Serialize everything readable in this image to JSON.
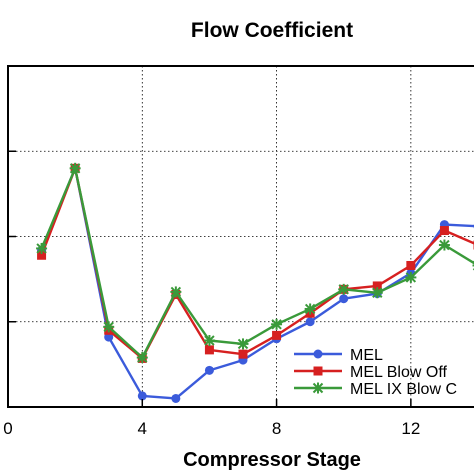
{
  "chart_data": {
    "type": "line",
    "title": "Flow Coefficient",
    "xlabel": "Compressor Stage",
    "ylabel": "",
    "xlim": [
      0,
      14
    ],
    "ylim": [
      0,
      4
    ],
    "x_ticks": [
      0,
      4,
      8,
      12
    ],
    "y_grid": [
      1,
      2,
      3
    ],
    "grid": true,
    "legend_position": "bottom-right",
    "x": [
      1,
      2,
      3,
      4,
      5,
      6,
      7,
      8,
      9,
      10,
      11,
      12,
      13,
      14
    ],
    "series": [
      {
        "name": "MEL",
        "color": "#3b5bdb",
        "marker": "circle",
        "values": [
          1.84,
          2.8,
          0.82,
          0.13,
          0.1,
          0.43,
          0.55,
          0.8,
          1.0,
          1.27,
          1.33,
          1.57,
          2.14,
          2.12
        ]
      },
      {
        "name": "MEL Blow Off",
        "color": "#d62020",
        "marker": "square",
        "values": [
          1.78,
          2.8,
          0.9,
          0.57,
          1.32,
          0.67,
          0.62,
          0.84,
          1.1,
          1.38,
          1.42,
          1.66,
          2.07,
          1.9
        ]
      },
      {
        "name": "MEL IX Blow C",
        "color": "#3a9a3a",
        "marker": "cross",
        "values": [
          1.86,
          2.8,
          0.94,
          0.58,
          1.35,
          0.78,
          0.74,
          0.97,
          1.15,
          1.38,
          1.34,
          1.52,
          1.9,
          1.66
        ]
      }
    ]
  }
}
